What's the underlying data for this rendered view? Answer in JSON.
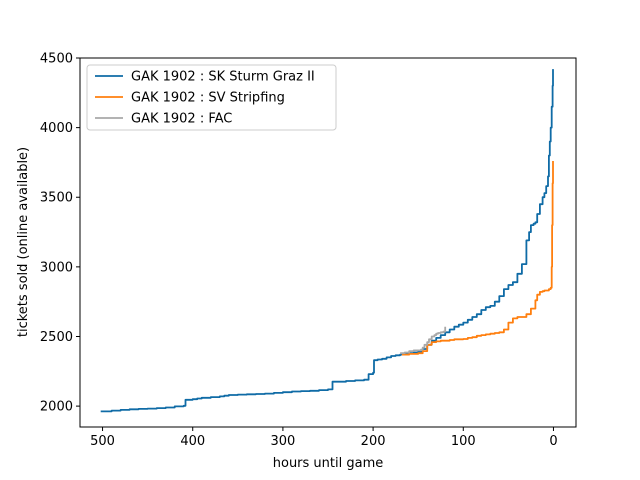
{
  "chart_data": {
    "type": "line",
    "title": "",
    "xlabel": "hours until game",
    "ylabel": "tickets sold (online available)",
    "xlim": [
      525,
      -25
    ],
    "ylim": [
      1850,
      4500
    ],
    "x_ticks": [
      500,
      400,
      300,
      200,
      100,
      0
    ],
    "y_ticks": [
      2000,
      2500,
      3000,
      3500,
      4000,
      4500
    ],
    "legend_position": "top-left",
    "series": [
      {
        "name": "GAK 1902 : SK Sturm Graz II",
        "color": "#0f6ba6",
        "x": [
          502,
          490,
          480,
          470,
          460,
          450,
          440,
          430,
          420,
          410,
          408,
          400,
          395,
          390,
          380,
          370,
          365,
          360,
          350,
          340,
          330,
          320,
          310,
          300,
          290,
          280,
          270,
          260,
          250,
          246,
          245,
          230,
          220,
          210,
          205,
          200,
          199,
          195,
          190,
          185,
          180,
          175,
          170,
          165,
          160,
          155,
          150,
          145,
          140,
          135,
          130,
          125,
          120,
          115,
          110,
          105,
          100,
          95,
          90,
          85,
          80,
          75,
          70,
          65,
          60,
          55,
          50,
          45,
          40,
          35,
          30,
          27,
          25,
          22,
          20,
          18,
          15,
          12,
          10,
          8,
          6,
          5,
          4,
          3,
          2,
          1,
          0.5
        ],
        "y": [
          1962,
          1968,
          1973,
          1977,
          1980,
          1982,
          1986,
          1990,
          1998,
          2002,
          2045,
          2050,
          2055,
          2060,
          2065,
          2070,
          2075,
          2080,
          2083,
          2085,
          2087,
          2090,
          2095,
          2100,
          2105,
          2108,
          2110,
          2115,
          2120,
          2120,
          2175,
          2180,
          2185,
          2190,
          2230,
          2240,
          2330,
          2335,
          2340,
          2350,
          2360,
          2365,
          2370,
          2375,
          2380,
          2385,
          2390,
          2410,
          2440,
          2470,
          2490,
          2510,
          2530,
          2550,
          2570,
          2585,
          2600,
          2620,
          2640,
          2660,
          2690,
          2710,
          2720,
          2750,
          2790,
          2840,
          2870,
          2890,
          2950,
          3020,
          3190,
          3250,
          3300,
          3310,
          3320,
          3380,
          3450,
          3500,
          3530,
          3580,
          3650,
          3800,
          3900,
          4000,
          4150,
          4300,
          4420
        ]
      },
      {
        "name": "GAK 1902 : SV Stripfing",
        "color": "#ff7f0e",
        "x": [
          168,
          160,
          150,
          145,
          140,
          135,
          130,
          125,
          120,
          115,
          110,
          105,
          100,
          95,
          90,
          85,
          80,
          75,
          70,
          65,
          60,
          55,
          50,
          45,
          40,
          35,
          30,
          25,
          20,
          18,
          15,
          12,
          10,
          7,
          5,
          3,
          2,
          1.5,
          1,
          0.5
        ],
        "y": [
          2370,
          2375,
          2380,
          2395,
          2440,
          2460,
          2465,
          2470,
          2470,
          2475,
          2480,
          2480,
          2482,
          2490,
          2495,
          2505,
          2510,
          2515,
          2520,
          2525,
          2530,
          2550,
          2600,
          2630,
          2640,
          2640,
          2660,
          2700,
          2760,
          2800,
          2820,
          2825,
          2830,
          2830,
          2840,
          2850,
          3000,
          3300,
          3600,
          3760
        ]
      },
      {
        "name": "GAK 1902 : FAC",
        "color": "#a8a8a8",
        "x": [
          170,
          165,
          160,
          155,
          150,
          147,
          145,
          143,
          140,
          138,
          135,
          132,
          130,
          128,
          125,
          122,
          120
        ],
        "y": [
          2380,
          2385,
          2395,
          2400,
          2400,
          2405,
          2420,
          2440,
          2460,
          2480,
          2500,
          2510,
          2520,
          2525,
          2530,
          2535,
          2570
        ]
      }
    ]
  }
}
